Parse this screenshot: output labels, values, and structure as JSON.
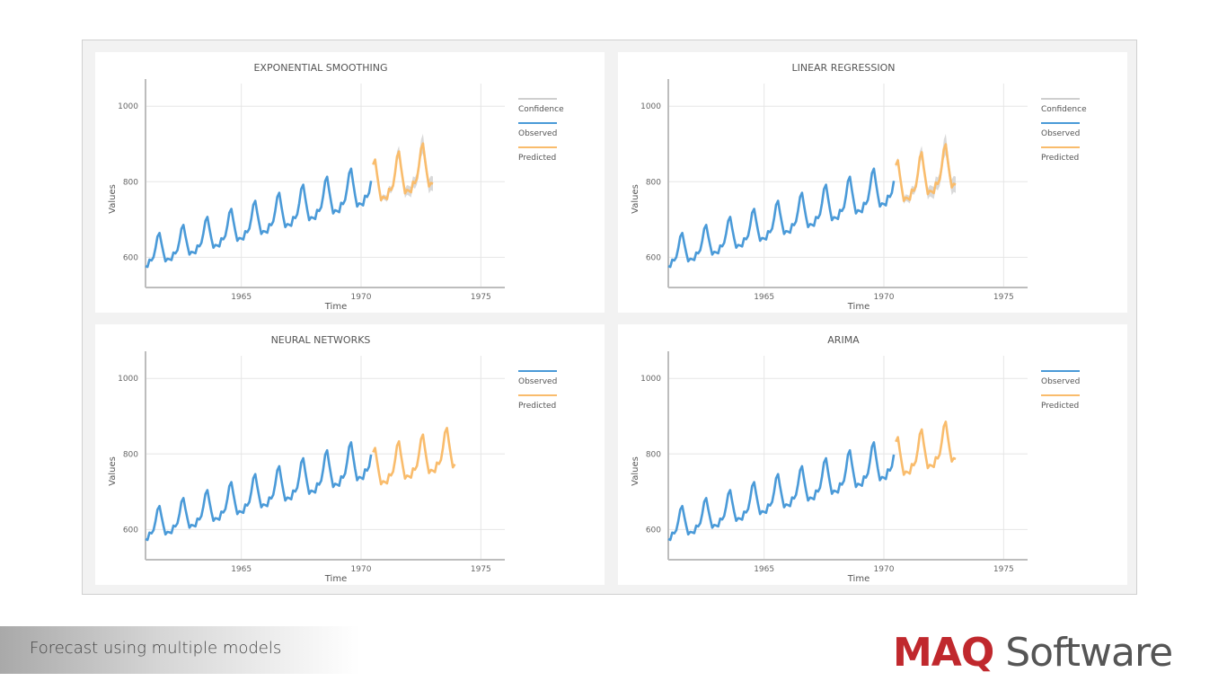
{
  "chart_data": [
    {
      "type": "line",
      "title": "EXPONENTIAL SMOOTHING",
      "xlabel": "Time",
      "ylabel": "Values",
      "xlim": [
        1961,
        1976
      ],
      "ylim": [
        520,
        1060
      ],
      "x_ticks": [
        1965,
        1970,
        1975
      ],
      "y_ticks": [
        600,
        800,
        1000
      ],
      "grid": true,
      "legend": [
        "Confidence",
        "Observed",
        "Predicted"
      ],
      "legend_position": "right",
      "series": [
        {
          "name": "Observed",
          "color": "#4a9ad8",
          "start": 1961,
          "base": 600,
          "trend": 19.2,
          "amplitude": 52,
          "months": 114
        },
        {
          "name": "Predicted",
          "color": "#f9bc6c",
          "start": 1970.5,
          "base": 600,
          "trend": 19.2,
          "amplitude": 54,
          "months": 31
        },
        {
          "name": "Confidence",
          "color": "#cfcfcf",
          "start": 1970.5,
          "half_width": [
            4,
            30
          ]
        }
      ]
    },
    {
      "type": "line",
      "title": "LINEAR REGRESSION",
      "xlabel": "Time",
      "ylabel": "Values",
      "xlim": [
        1961,
        1976
      ],
      "ylim": [
        520,
        1060
      ],
      "x_ticks": [
        1965,
        1970,
        1975
      ],
      "y_ticks": [
        600,
        800,
        1000
      ],
      "grid": true,
      "legend": [
        "Confidence",
        "Observed",
        "Predicted"
      ],
      "legend_position": "right",
      "series": [
        {
          "name": "Observed",
          "color": "#4a9ad8",
          "start": 1961,
          "base": 600,
          "trend": 19.2,
          "amplitude": 52,
          "months": 114
        },
        {
          "name": "Predicted",
          "color": "#f9bc6c",
          "start": 1970.5,
          "base": 600,
          "trend": 19.0,
          "amplitude": 54,
          "months": 31
        },
        {
          "name": "Confidence",
          "color": "#cfcfcf",
          "start": 1970.5,
          "half_width": [
            6,
            32
          ]
        }
      ]
    },
    {
      "type": "line",
      "title": "NEURAL NETWORKS",
      "xlabel": "Time",
      "ylabel": "Values",
      "xlim": [
        1961,
        1976
      ],
      "ylim": [
        520,
        1060
      ],
      "x_ticks": [
        1965,
        1970,
        1975
      ],
      "y_ticks": [
        600,
        800,
        1000
      ],
      "grid": true,
      "legend": [
        "Observed",
        "Predicted"
      ],
      "legend_position": "right",
      "series": [
        {
          "name": "Observed",
          "color": "#4a9ad8",
          "start": 1961,
          "base": 598,
          "trend": 19.0,
          "amplitude": 52,
          "months": 114
        },
        {
          "name": "Predicted",
          "color": "#f9bc6c",
          "start": 1970.5,
          "base": 598,
          "trend": 15.8,
          "amplitude": 48,
          "months": 42
        }
      ]
    },
    {
      "type": "line",
      "title": "ARIMA",
      "xlabel": "Time",
      "ylabel": "Values",
      "xlim": [
        1961,
        1976
      ],
      "ylim": [
        520,
        1060
      ],
      "x_ticks": [
        1965,
        1970,
        1975
      ],
      "y_ticks": [
        600,
        800,
        1000
      ],
      "grid": true,
      "legend": [
        "Observed",
        "Predicted"
      ],
      "legend_position": "right",
      "series": [
        {
          "name": "Observed",
          "color": "#4a9ad8",
          "start": 1961,
          "base": 598,
          "trend": 19.0,
          "amplitude": 52,
          "months": 114
        },
        {
          "name": "Predicted",
          "color": "#f9bc6c",
          "start": 1970.5,
          "base": 598,
          "trend": 18.5,
          "amplitude": 50,
          "months": 31
        }
      ]
    }
  ],
  "footer": {
    "caption": "Forecast using multiple models"
  },
  "logo": {
    "brand": "MAQ",
    "suffix": " Software",
    "brand_color": "#c0282d"
  }
}
